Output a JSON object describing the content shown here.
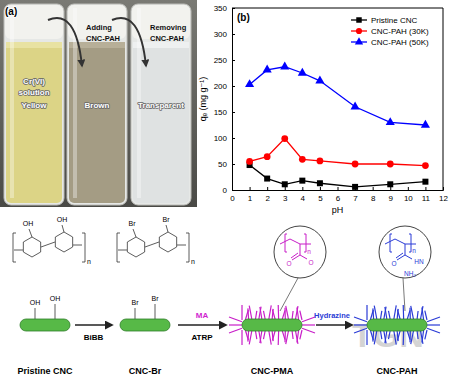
{
  "panel_a": {
    "label": "(a)",
    "vials": [
      {
        "lines": [
          "Cr(VI)",
          "solution"
        ],
        "color_word": "Yellow"
      },
      {
        "color_word": "Brown"
      },
      {
        "color_word": "Transparent"
      }
    ],
    "arrows": [
      {
        "lines": [
          "Adding",
          "CNC-PAH"
        ]
      },
      {
        "lines": [
          "Removing",
          "CNC-PAH"
        ]
      }
    ]
  },
  "chart_data": {
    "type": "line",
    "title": "(b)",
    "xlabel": "pH",
    "ylabel": "qₑ (mg g⁻¹)",
    "x": [
      1,
      2,
      3,
      4,
      5,
      7,
      9,
      11
    ],
    "series": [
      {
        "name": "Pristine CNC",
        "color": "#000000",
        "marker": "square",
        "values": [
          48,
          22,
          11,
          18,
          13,
          6,
          11,
          16
        ]
      },
      {
        "name": "CNC-PAH (30K)",
        "color": "#ff0000",
        "marker": "circle",
        "values": [
          55,
          64,
          99,
          59,
          56,
          50,
          50,
          47
        ]
      },
      {
        "name": "CNC-PAH (50K)",
        "color": "#0000ff",
        "marker": "triangle",
        "values": [
          203,
          231,
          237,
          225,
          210,
          160,
          130,
          125
        ]
      }
    ],
    "xlim": [
      0,
      12
    ],
    "xticks": [
      0,
      1,
      2,
      3,
      4,
      5,
      6,
      7,
      8,
      9,
      10,
      11,
      12
    ],
    "ylim": [
      0,
      350
    ],
    "yticks": [
      0,
      50,
      100,
      150,
      200,
      250,
      300,
      350
    ],
    "legend": "upper right"
  },
  "scheme": {
    "structures": [
      [
        "OH",
        "OH",
        "n"
      ],
      [
        "Br",
        "Br",
        "n"
      ]
    ],
    "compounds": [
      {
        "label": "Pristine CNC",
        "groups": [
          "OH",
          "OH"
        ]
      },
      {
        "label": "CNC-Br",
        "groups": [
          "Br",
          "Br"
        ]
      },
      {
        "label": "CNC-PMA",
        "monomer": [
          "O",
          "O",
          "n"
        ]
      },
      {
        "label": "CNC-PAH",
        "monomer": [
          "O",
          "HN",
          "NH₂",
          "n"
        ]
      }
    ],
    "steps": [
      {
        "reagent": "BiBB"
      },
      {
        "reagent": "MA",
        "condition": "ATRP"
      },
      {
        "reagent": "Hydrazine"
      }
    ]
  },
  "watermark": "TGN"
}
